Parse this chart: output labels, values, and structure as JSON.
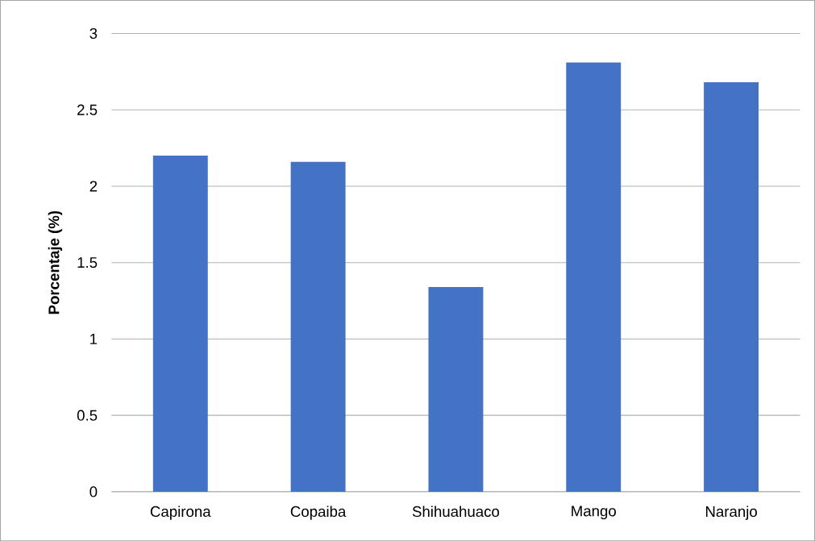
{
  "chart_data": {
    "type": "bar",
    "ylabel": "Porcentaje (%)",
    "categories": [
      "Capirona",
      "Copaiba",
      "Shihuahuaco",
      "Mango",
      "Naranjo"
    ],
    "values": [
      2.2,
      2.16,
      1.34,
      2.81,
      2.68
    ],
    "color": "#4472c4",
    "ylim": [
      0,
      3
    ],
    "yticks": [
      0,
      0.5,
      1,
      1.5,
      2,
      2.5,
      3
    ],
    "grid": "y"
  }
}
